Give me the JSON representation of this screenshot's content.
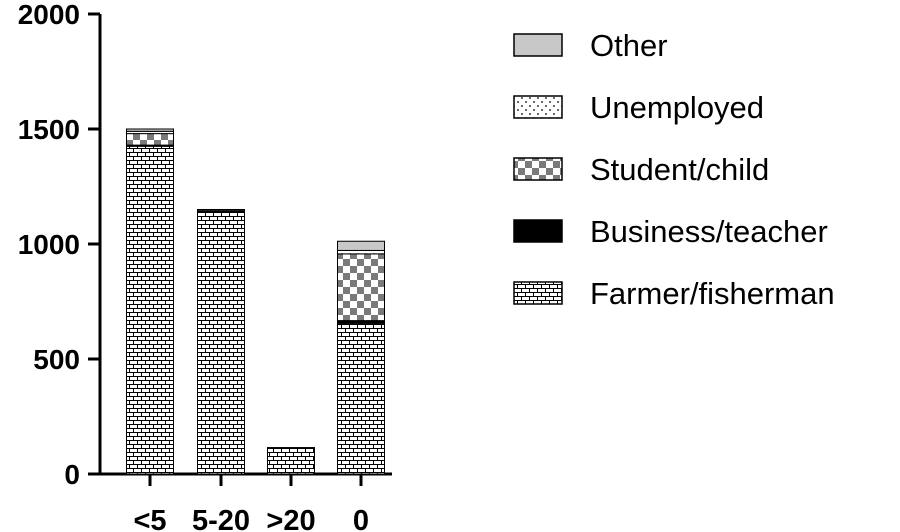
{
  "chart_data": {
    "type": "bar",
    "stacked": true,
    "categories": [
      "<5",
      "5-20",
      ">20",
      "0"
    ],
    "ylim": [
      0,
      2000
    ],
    "yticks": [
      0,
      500,
      1000,
      1500,
      2000
    ],
    "title": "",
    "xlabel": "",
    "ylabel": "",
    "legend_position": "right",
    "grid": false,
    "series": [
      {
        "name": "Farmer/fisherman",
        "pattern": "bricks",
        "color": "#000000",
        "values": [
          1425,
          1140,
          115,
          655
        ]
      },
      {
        "name": "Business/teacher",
        "pattern": "solid",
        "color": "#000000",
        "values": [
          5,
          5,
          0,
          12
        ]
      },
      {
        "name": "Student/child",
        "pattern": "checker",
        "color": "#808080",
        "values": [
          50,
          0,
          0,
          290
        ]
      },
      {
        "name": "Unemployed",
        "pattern": "dots",
        "color": "#000000",
        "values": [
          10,
          0,
          0,
          15
        ]
      },
      {
        "name": "Other",
        "pattern": "solid-light",
        "color": "#c8c8c8",
        "values": [
          10,
          5,
          0,
          40
        ]
      }
    ],
    "legend_order": [
      "Other",
      "Unemployed",
      "Student/child",
      "Business/teacher",
      "Farmer/fisherman"
    ]
  }
}
